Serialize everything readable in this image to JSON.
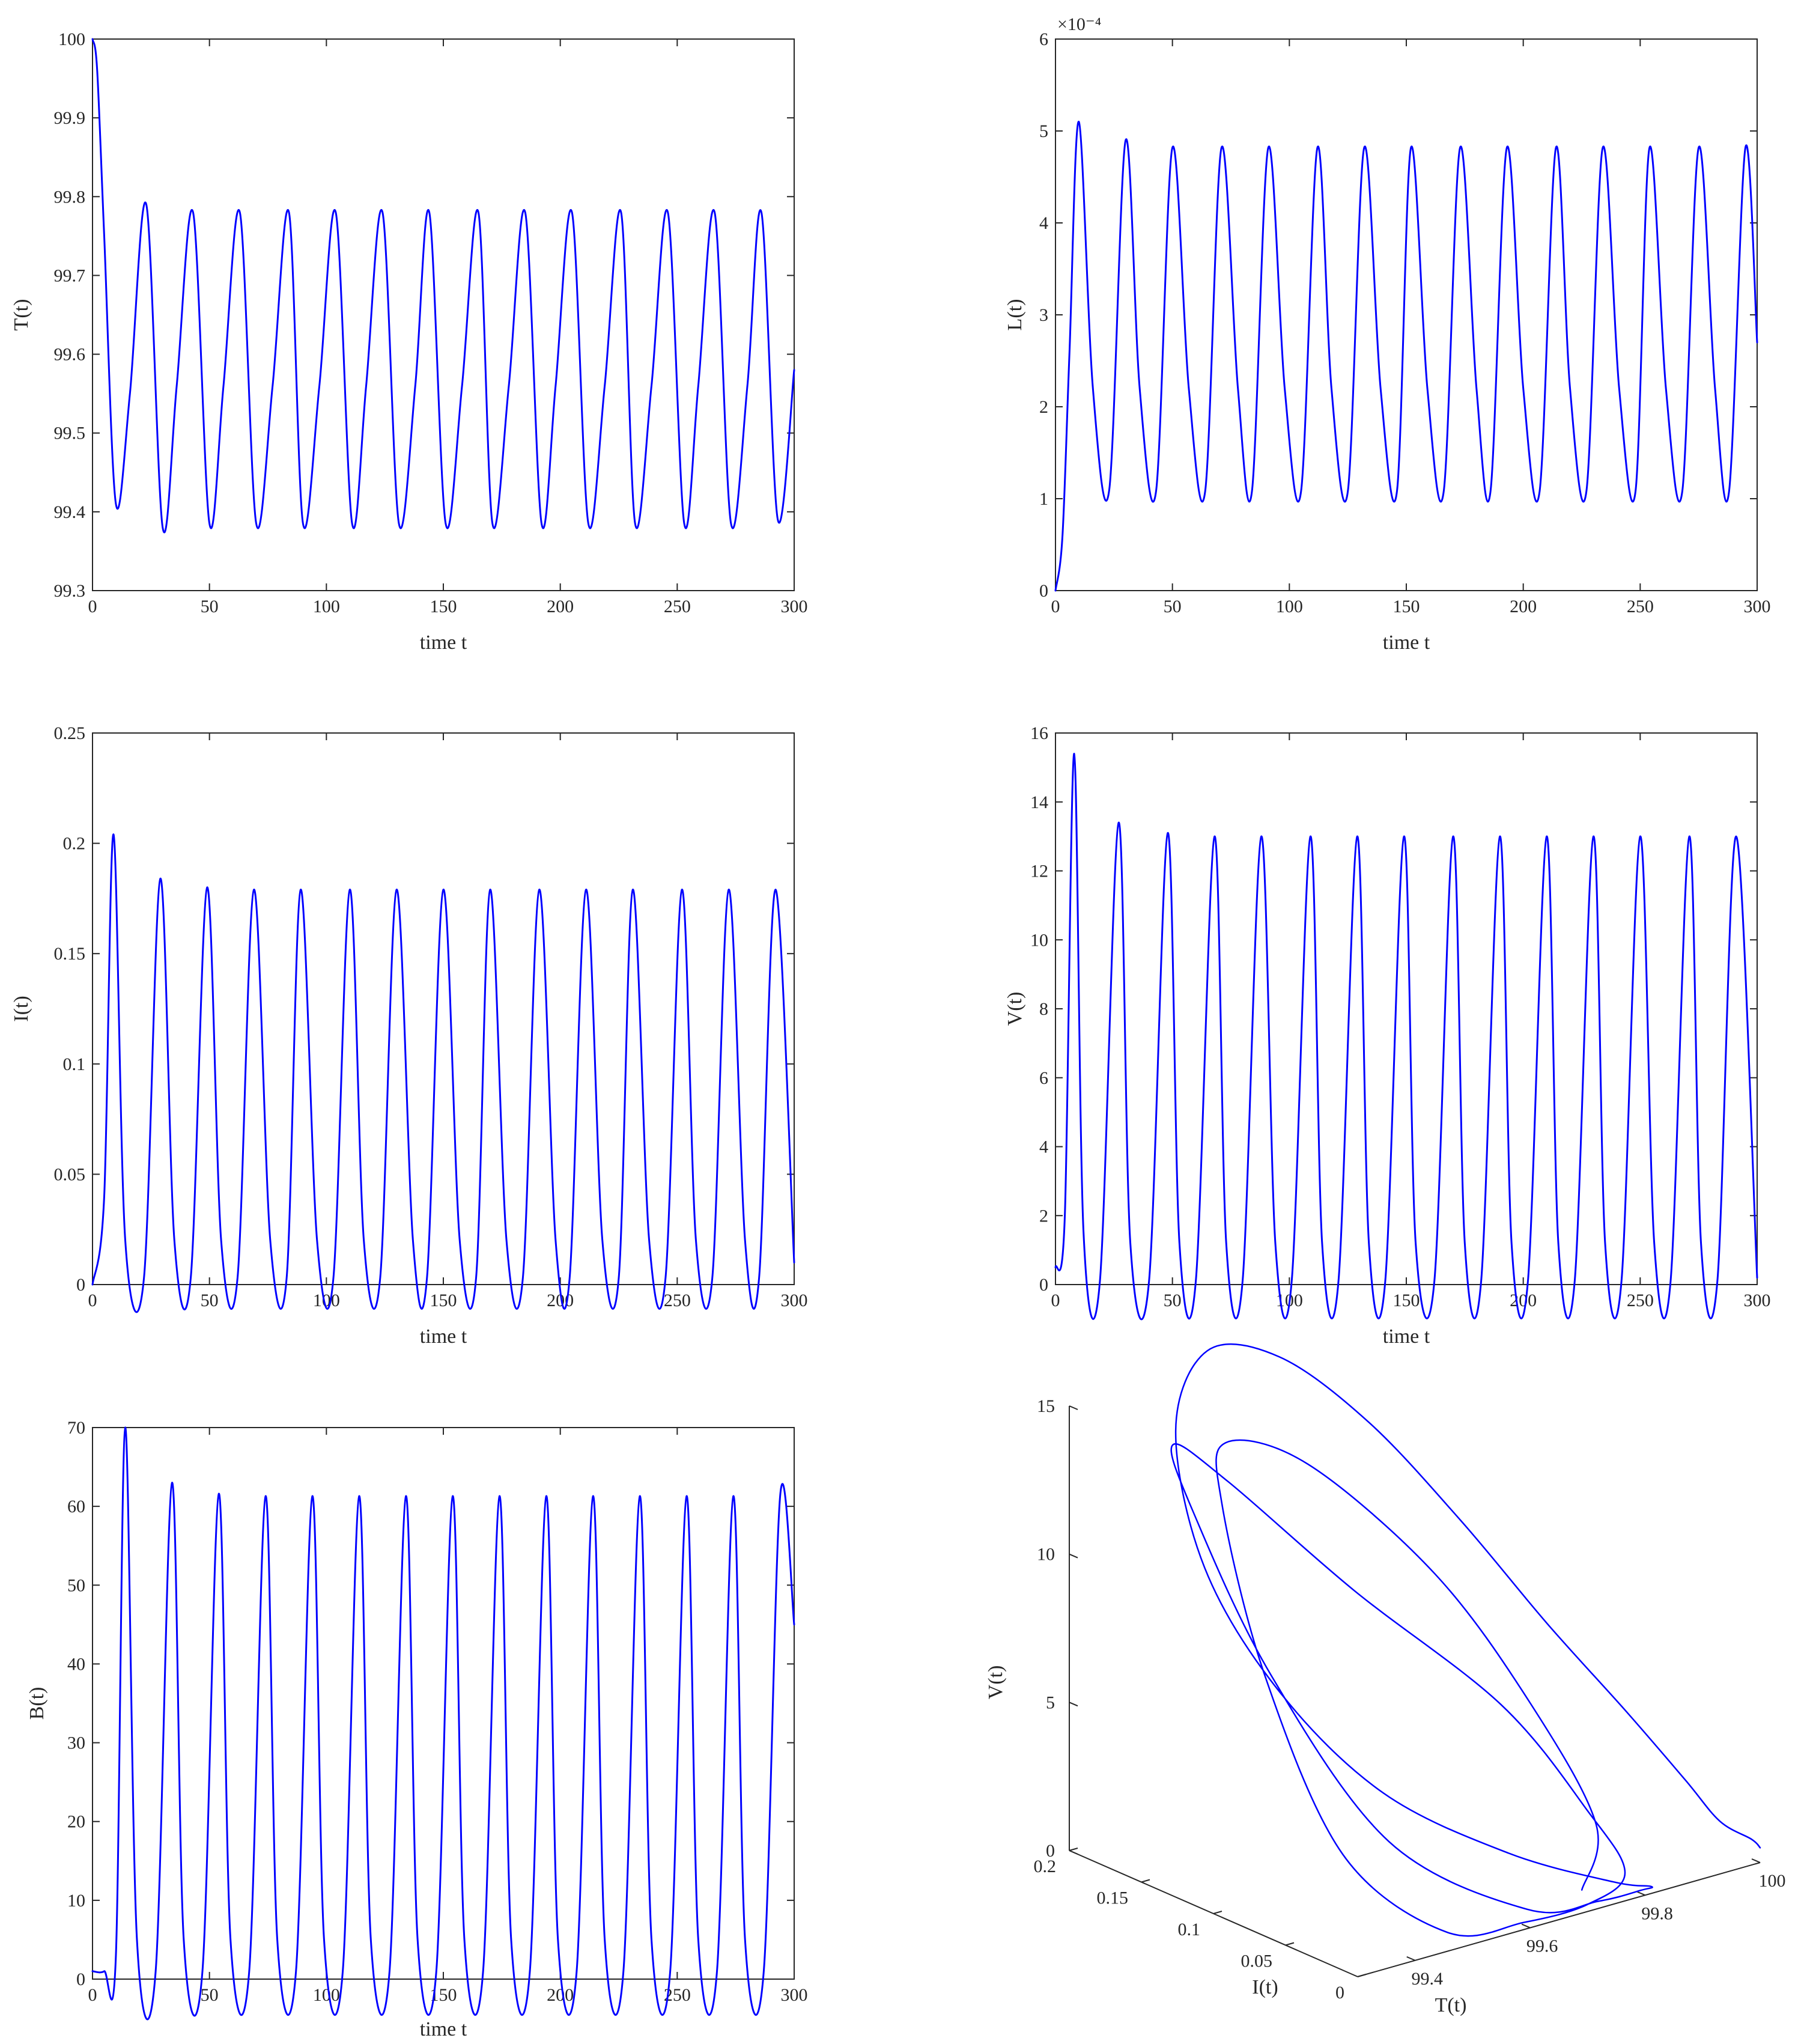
{
  "chart_data": [
    {
      "id": "T",
      "type": "line",
      "ylabel": "T(t)",
      "xlabel": "time t",
      "xlim": [
        0,
        300
      ],
      "ylim": [
        99.3,
        100
      ],
      "xticks": [
        "0",
        "50",
        "100",
        "150",
        "200",
        "250",
        "300"
      ],
      "yticks": [
        "99.3",
        "99.4",
        "99.5",
        "99.6",
        "99.7",
        "99.8",
        "99.9",
        "100"
      ],
      "exponent_label": "",
      "series": [
        {
          "color": "#0000ff",
          "x": [
            0,
            2,
            5,
            10,
            16,
            23,
            30,
            36,
            43,
            50,
            56,
            63,
            70,
            77,
            84,
            90,
            97,
            104,
            111,
            117,
            124,
            131,
            138,
            144,
            151,
            158,
            165,
            171,
            178,
            185,
            192,
            198,
            205,
            212,
            219,
            226,
            232,
            239,
            246,
            253,
            259,
            266,
            273,
            280,
            286,
            293,
            300
          ],
          "y": [
            100,
            99.96,
            99.75,
            99.41,
            99.55,
            99.79,
            99.38,
            99.56,
            99.78,
            99.385,
            99.56,
            99.78,
            99.385,
            99.56,
            99.78,
            99.385,
            99.56,
            99.78,
            99.385,
            99.56,
            99.78,
            99.385,
            99.56,
            99.78,
            99.385,
            99.56,
            99.78,
            99.385,
            99.56,
            99.78,
            99.385,
            99.56,
            99.78,
            99.385,
            99.56,
            99.78,
            99.385,
            99.56,
            99.78,
            99.385,
            99.56,
            99.78,
            99.385,
            99.56,
            99.78,
            99.39,
            99.58
          ]
        }
      ]
    },
    {
      "id": "L",
      "type": "line",
      "ylabel": "L(t)",
      "xlabel": "time t",
      "xlim": [
        0,
        300
      ],
      "ylim": [
        0,
        6
      ],
      "xticks": [
        "0",
        "50",
        "100",
        "150",
        "200",
        "250",
        "300"
      ],
      "yticks": [
        "0",
        "1",
        "2",
        "3",
        "4",
        "5",
        "6"
      ],
      "exponent_label": "×10⁻⁴",
      "series": [
        {
          "color": "#0000ff",
          "x": [
            0,
            3,
            6,
            10,
            16,
            23,
            30,
            36,
            43,
            50,
            57,
            64,
            71,
            78,
            84,
            91,
            98,
            105,
            112,
            118,
            125,
            132,
            139,
            146,
            152,
            159,
            166,
            173,
            180,
            186,
            193,
            200,
            207,
            214,
            220,
            227,
            234,
            241,
            248,
            254,
            261,
            268,
            275,
            282,
            288,
            295,
            300
          ],
          "y": [
            0,
            0.6,
            2.6,
            5.1,
            2.2,
            1.1,
            4.9,
            2.2,
            1.08,
            4.82,
            2.2,
            1.08,
            4.82,
            2.2,
            1.08,
            4.82,
            2.2,
            1.08,
            4.82,
            2.2,
            1.08,
            4.82,
            2.2,
            1.08,
            4.82,
            2.2,
            1.08,
            4.82,
            2.2,
            1.08,
            4.82,
            2.2,
            1.08,
            4.82,
            2.2,
            1.08,
            4.82,
            2.2,
            1.08,
            4.82,
            2.2,
            1.08,
            4.82,
            2.2,
            1.08,
            4.82,
            2.7
          ]
        }
      ]
    },
    {
      "id": "I",
      "type": "line",
      "ylabel": "I(t)",
      "xlabel": "time t",
      "xlim": [
        0,
        300
      ],
      "ylim": [
        0,
        0.25
      ],
      "xticks": [
        "0",
        "50",
        "100",
        "150",
        "200",
        "250",
        "300"
      ],
      "yticks": [
        "0",
        "0.05",
        "0.1",
        "0.15",
        "0.2",
        "0.25"
      ],
      "exponent_label": "",
      "series": [
        {
          "color": "#0000ff",
          "x": [
            0,
            5,
            9,
            14,
            22,
            29,
            35,
            42,
            49,
            55,
            62,
            69,
            76,
            83,
            89,
            96,
            103,
            110,
            116,
            123,
            130,
            137,
            143,
            150,
            157,
            164,
            170,
            177,
            184,
            191,
            198,
            204,
            211,
            218,
            225,
            231,
            238,
            245,
            252,
            258,
            265,
            272,
            279,
            285,
            292,
            300
          ],
          "y": [
            0,
            0.04,
            0.204,
            0.02,
            0.003,
            0.184,
            0.02,
            0.003,
            0.18,
            0.02,
            0.003,
            0.179,
            0.02,
            0.003,
            0.179,
            0.02,
            0.003,
            0.179,
            0.02,
            0.003,
            0.179,
            0.02,
            0.003,
            0.179,
            0.02,
            0.003,
            0.179,
            0.02,
            0.003,
            0.179,
            0.02,
            0.003,
            0.179,
            0.02,
            0.003,
            0.179,
            0.02,
            0.003,
            0.179,
            0.02,
            0.003,
            0.179,
            0.02,
            0.003,
            0.179,
            0.01
          ]
        }
      ]
    },
    {
      "id": "V",
      "type": "line",
      "ylabel": "V(t)",
      "xlabel": "time t",
      "xlim": [
        0,
        300
      ],
      "ylim": [
        0,
        16
      ],
      "xticks": [
        "0",
        "50",
        "100",
        "150",
        "200",
        "250",
        "300"
      ],
      "yticks": [
        "0",
        "2",
        "4",
        "6",
        "8",
        "10",
        "12",
        "14",
        "16"
      ],
      "exponent_label": "",
      "series": [
        {
          "color": "#0000ff",
          "x": [
            0,
            4,
            8,
            12,
            19,
            27,
            32,
            40,
            48,
            53,
            60,
            68,
            73,
            80,
            88,
            94,
            101,
            109,
            114,
            121,
            129,
            134,
            141,
            149,
            154,
            162,
            170,
            175,
            182,
            190,
            195,
            202,
            210,
            215,
            222,
            230,
            235,
            242,
            250,
            256,
            263,
            271,
            276,
            283,
            291,
            300
          ],
          "y": [
            0.5,
            2,
            15.4,
            1.5,
            0.1,
            13.4,
            1.2,
            0.1,
            13.1,
            1.2,
            0.1,
            13.0,
            1.2,
            0.1,
            13.0,
            1.2,
            0.1,
            13.0,
            1.2,
            0.1,
            13.0,
            1.2,
            0.1,
            13.0,
            1.2,
            0.1,
            13.0,
            1.2,
            0.1,
            13.0,
            1.2,
            0.1,
            13.0,
            1.2,
            0.1,
            13.0,
            1.2,
            0.1,
            13.0,
            1.2,
            0.1,
            13.0,
            1.2,
            0.1,
            13.0,
            0.2
          ]
        }
      ]
    },
    {
      "id": "B",
      "type": "line",
      "ylabel": "B(t)",
      "xlabel": "time t",
      "xlim": [
        0,
        300
      ],
      "ylim": [
        0,
        70
      ],
      "xticks": [
        "0",
        "50",
        "100",
        "150",
        "200",
        "250",
        "300"
      ],
      "yticks": [
        "0",
        "10",
        "20",
        "30",
        "40",
        "50",
        "60",
        "70"
      ],
      "exponent_label": "",
      "series": [
        {
          "color": "#0000ff",
          "x": [
            0,
            5,
            10,
            14,
            19,
            27,
            34,
            39,
            47,
            54,
            59,
            67,
            74,
            79,
            87,
            94,
            99,
            107,
            114,
            119,
            127,
            134,
            139,
            147,
            154,
            159,
            167,
            174,
            179,
            187,
            194,
            199,
            207,
            214,
            219,
            227,
            234,
            239,
            247,
            254,
            259,
            267,
            274,
            279,
            287,
            294,
            300
          ],
          "y": [
            1,
            1,
            3,
            70,
            5,
            1,
            63,
            5,
            1,
            61.6,
            5,
            1,
            61.3,
            5,
            1,
            61.3,
            5,
            1,
            61.3,
            5,
            1,
            61.3,
            5,
            1,
            61.3,
            5,
            1,
            61.3,
            5,
            1,
            61.3,
            5,
            1,
            61.3,
            5,
            1,
            61.3,
            5,
            1,
            61.3,
            5,
            1,
            61.3,
            5,
            1,
            61.3,
            45
          ]
        }
      ]
    },
    {
      "id": "phase",
      "type": "line3d",
      "xlabel": "T(t)",
      "ylabel": "I(t)",
      "zlabel": "V(t)",
      "xlim": [
        99.3,
        100
      ],
      "ylim": [
        0,
        0.2
      ],
      "zlim": [
        0,
        15
      ],
      "xticks": [
        "99.4",
        "99.6",
        "99.8",
        "100"
      ],
      "yticks": [
        "0",
        "0.05",
        "0.1",
        "0.15",
        "0.2"
      ],
      "zticks": [
        "0",
        "5",
        "10",
        "15"
      ],
      "trajectory": {
        "color": "#0000ff",
        "T": [
          100.0,
          99.99,
          99.95,
          99.92,
          99.88,
          99.83,
          99.78,
          99.72,
          99.64,
          99.55,
          99.46,
          99.41,
          99.44,
          99.52,
          99.65,
          99.77,
          99.82,
          99.8,
          99.73,
          99.62,
          99.48,
          99.4,
          99.39,
          99.43,
          99.5,
          99.62,
          99.75,
          99.8,
          99.79,
          99.71,
          99.6,
          99.48,
          99.4,
          99.39,
          99.44,
          99.52,
          99.64,
          99.76,
          99.8,
          99.79,
          99.71
        ],
        "I": [
          0.0,
          0.002,
          0.008,
          0.02,
          0.045,
          0.08,
          0.12,
          0.16,
          0.19,
          0.204,
          0.19,
          0.15,
          0.11,
          0.07,
          0.035,
          0.01,
          0.004,
          0.003,
          0.004,
          0.01,
          0.05,
          0.1,
          0.15,
          0.18,
          0.17,
          0.13,
          0.08,
          0.04,
          0.01,
          0.004,
          0.004,
          0.01,
          0.05,
          0.1,
          0.15,
          0.179,
          0.17,
          0.13,
          0.08,
          0.03,
          0.008
        ],
        "V": [
          0.5,
          0.8,
          1.5,
          2.8,
          4.8,
          7.3,
          10.2,
          13.0,
          15.0,
          15.4,
          13.5,
          10.0,
          6.5,
          3.5,
          1.5,
          0.4,
          0.1,
          0.1,
          0.1,
          0.3,
          2.5,
          7.5,
          12.0,
          13.4,
          12.0,
          8.5,
          5.0,
          2.0,
          0.6,
          0.1,
          0.1,
          0.3,
          2.5,
          7.5,
          12.0,
          13.0,
          11.8,
          8.3,
          4.8,
          1.8,
          0.5
        ]
      }
    }
  ]
}
